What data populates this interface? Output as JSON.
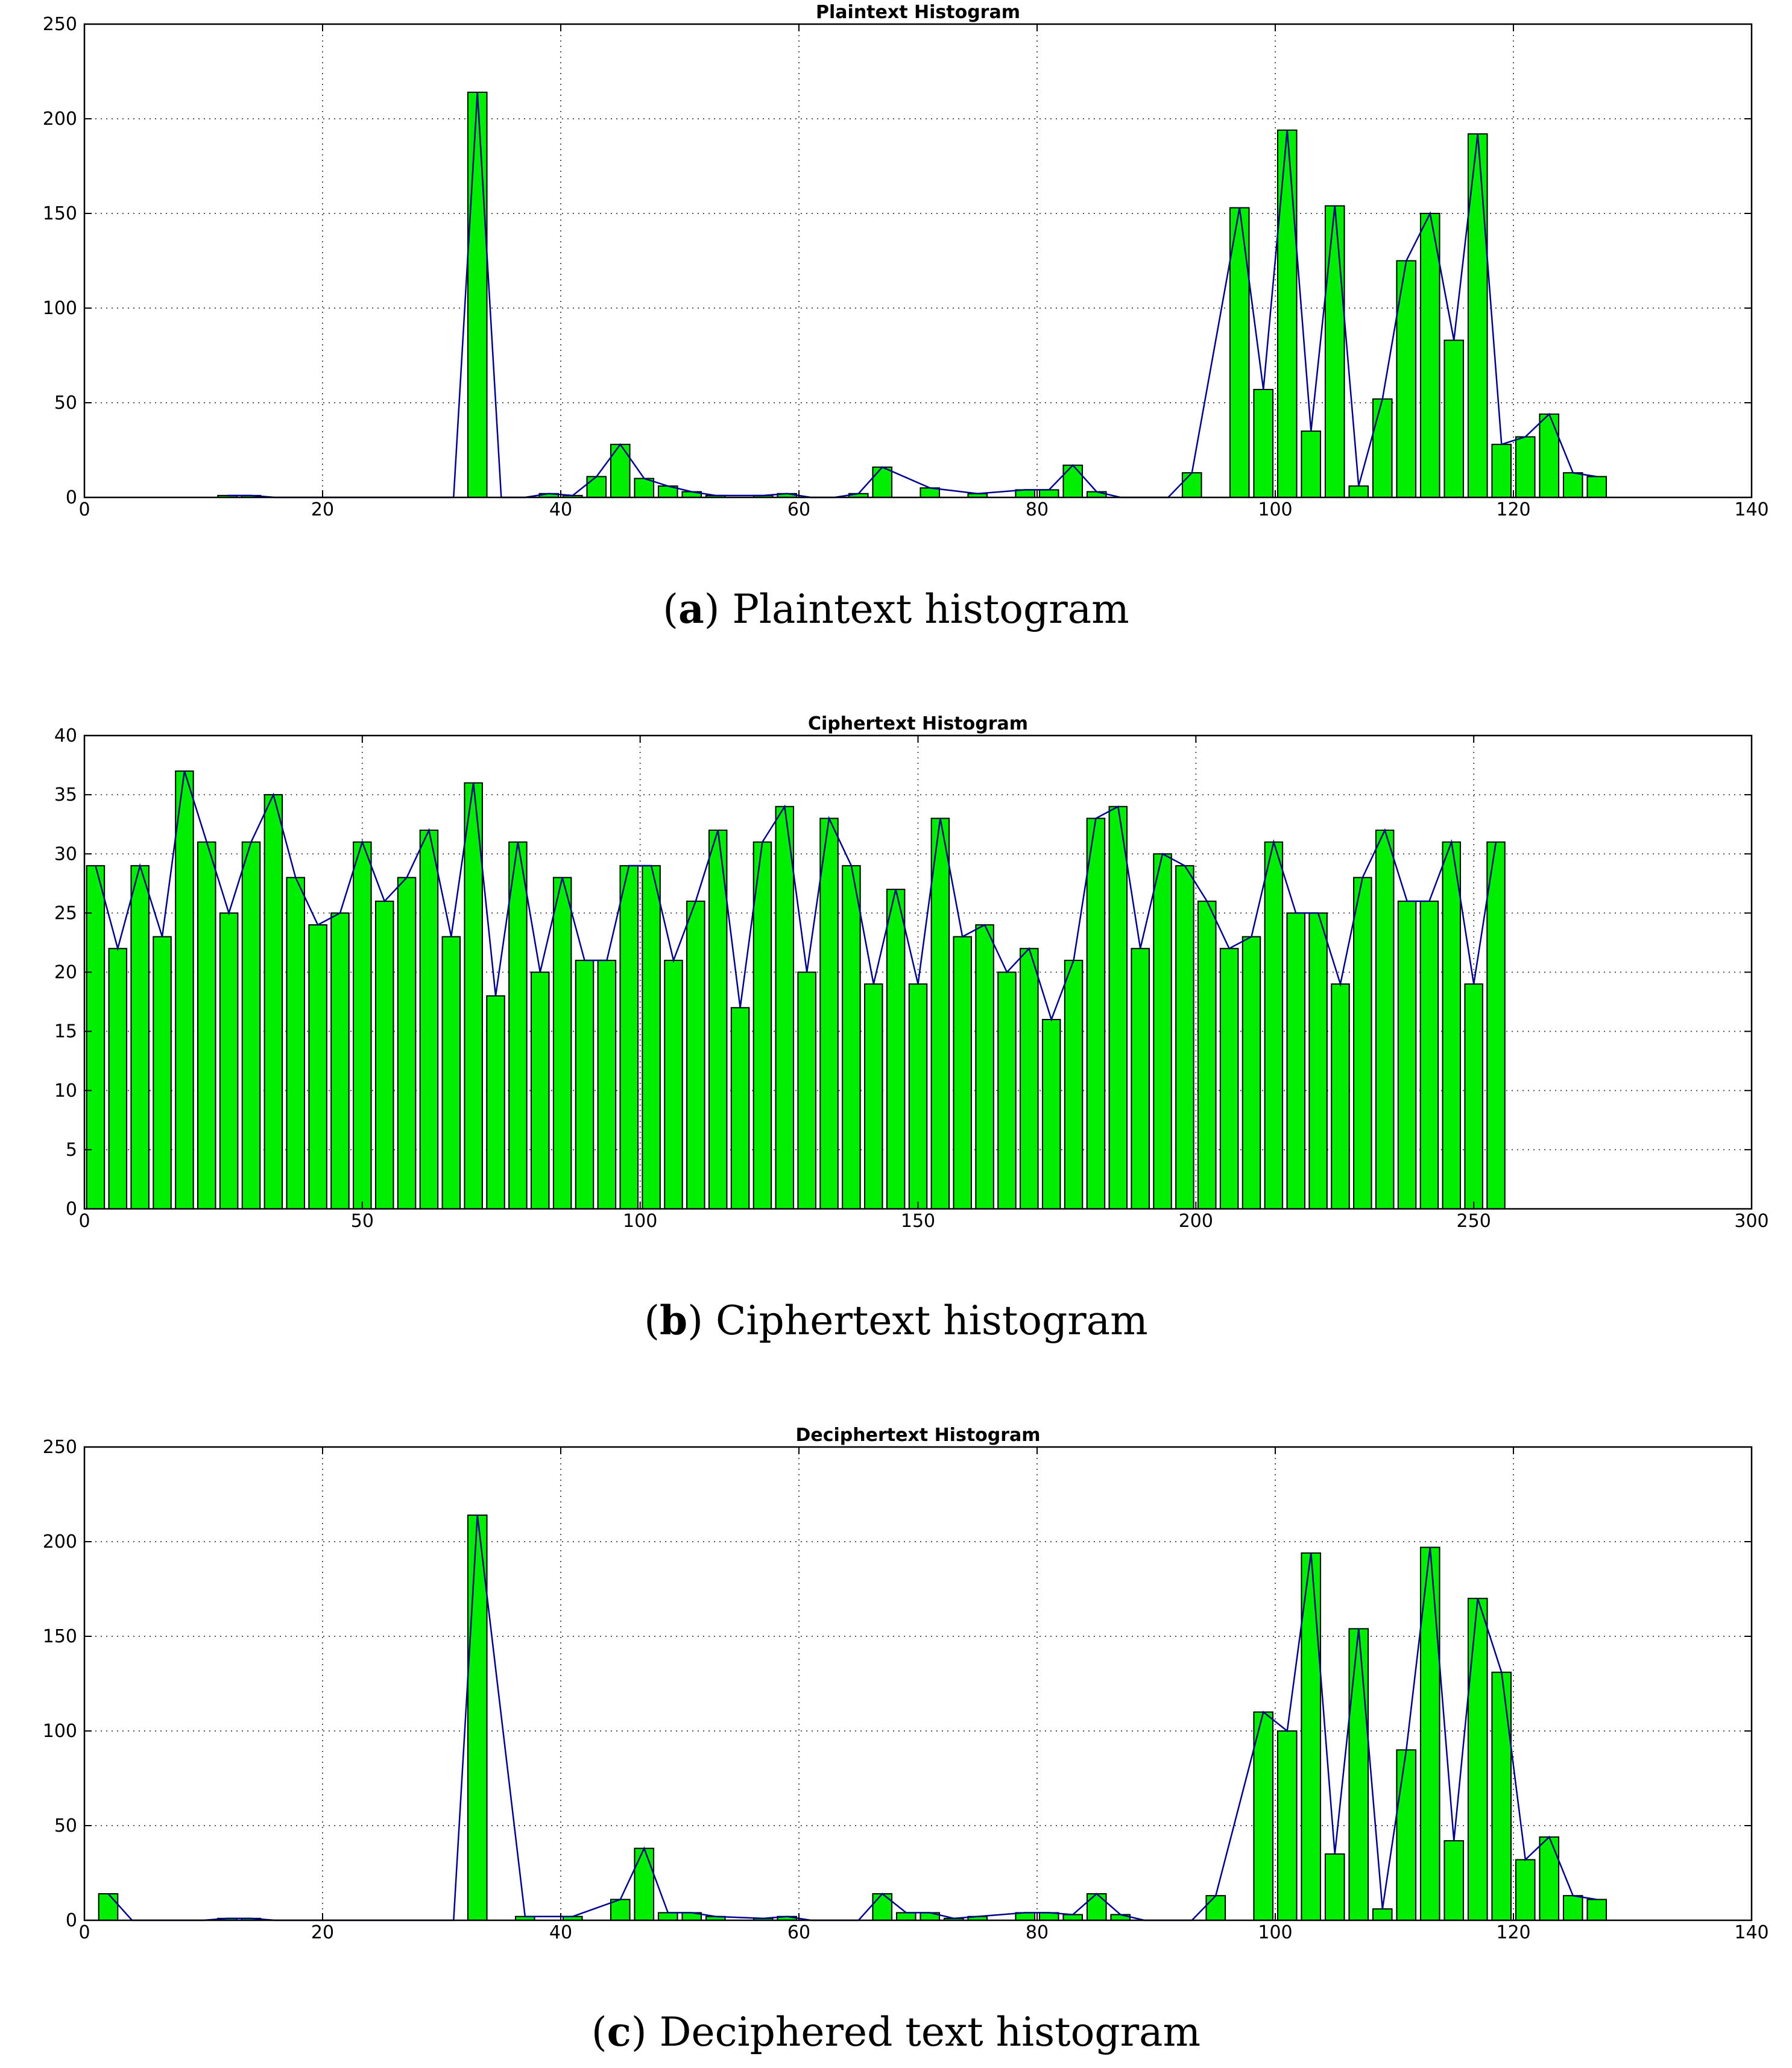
{
  "chart_data": [
    {
      "type": "bar",
      "title": "Plaintext Histogram",
      "caption_letter": "a",
      "caption_text": "Plaintext histogram",
      "xlim": [
        0,
        140
      ],
      "ylim": [
        0,
        250
      ],
      "xticks": [
        0,
        20,
        40,
        60,
        80,
        100,
        120,
        140
      ],
      "yticks": [
        0,
        50,
        100,
        150,
        200,
        250
      ],
      "bar_width": 1.6,
      "grid": true,
      "overlay_line": true,
      "x": [
        12,
        14,
        33,
        39,
        41,
        43,
        45,
        47,
        49,
        51,
        53,
        57,
        59,
        65,
        67,
        71,
        75,
        79,
        81,
        83,
        85,
        93,
        97,
        99,
        101,
        103,
        105,
        107,
        109,
        111,
        113,
        115,
        117,
        119,
        121,
        123,
        125,
        127
      ],
      "values": [
        1,
        1,
        214,
        2,
        1,
        11,
        28,
        10,
        6,
        3,
        1,
        1,
        2,
        2,
        16,
        5,
        2,
        4,
        4,
        17,
        3,
        13,
        153,
        57,
        194,
        35,
        154,
        6,
        52,
        125,
        150,
        83,
        192,
        28,
        32,
        44,
        13,
        11
      ]
    },
    {
      "type": "bar",
      "title": "Ciphertext Histogram",
      "caption_letter": "b",
      "caption_text": "Ciphertext histogram",
      "xlim": [
        0,
        300
      ],
      "ylim": [
        0,
        40
      ],
      "xticks": [
        0,
        50,
        100,
        150,
        200,
        250,
        300
      ],
      "yticks": [
        0,
        5,
        10,
        15,
        20,
        25,
        30,
        35,
        40
      ],
      "bar_width": 3.2,
      "grid": true,
      "overlay_line": true,
      "x": [
        2,
        6,
        10,
        14,
        18,
        22,
        26,
        30,
        34,
        38,
        42,
        46,
        50,
        54,
        58,
        62,
        66,
        70,
        74,
        78,
        82,
        86,
        90,
        94,
        98,
        102,
        106,
        110,
        114,
        118,
        122,
        126,
        130,
        134,
        138,
        142,
        146,
        150,
        154,
        158,
        162,
        166,
        170,
        174,
        178,
        182,
        186,
        190,
        194,
        198,
        202,
        206,
        210,
        214,
        218,
        222,
        226,
        230,
        234,
        238,
        242,
        246,
        250,
        254
      ],
      "values": [
        29,
        22,
        29,
        23,
        37,
        31,
        25,
        31,
        35,
        28,
        24,
        25,
        31,
        26,
        28,
        32,
        23,
        36,
        18,
        31,
        20,
        28,
        21,
        21,
        29,
        29,
        21,
        26,
        32,
        17,
        31,
        34,
        20,
        33,
        29,
        19,
        27,
        19,
        33,
        23,
        24,
        20,
        22,
        16,
        21,
        33,
        34,
        22,
        30,
        29,
        26,
        22,
        23,
        31,
        25,
        25,
        19,
        28,
        32,
        26,
        26,
        31,
        19,
        31
      ]
    },
    {
      "type": "bar",
      "title": "Deciphertext Histogram",
      "caption_letter": "c",
      "caption_text": "Deciphered text histogram",
      "xlim": [
        0,
        140
      ],
      "ylim": [
        0,
        250
      ],
      "xticks": [
        0,
        20,
        40,
        60,
        80,
        100,
        120,
        140
      ],
      "yticks": [
        0,
        50,
        100,
        150,
        200,
        250
      ],
      "bar_width": 1.6,
      "grid": true,
      "overlay_line": true,
      "x": [
        2,
        12,
        14,
        33,
        37,
        41,
        45,
        47,
        49,
        51,
        53,
        57,
        59,
        67,
        69,
        71,
        73,
        75,
        79,
        81,
        83,
        85,
        87,
        95,
        99,
        101,
        103,
        105,
        107,
        109,
        111,
        113,
        115,
        117,
        119,
        121,
        123,
        125,
        127
      ],
      "values": [
        14,
        1,
        1,
        214,
        2,
        2,
        11,
        38,
        4,
        4,
        2,
        1,
        2,
        14,
        4,
        4,
        1,
        2,
        4,
        4,
        3,
        14,
        3,
        13,
        110,
        100,
        194,
        35,
        154,
        6,
        90,
        197,
        42,
        170,
        131,
        32,
        44,
        13,
        11
      ]
    }
  ],
  "colors": {
    "bar_fill": "#00ee00",
    "bar_edge": "#000000",
    "line": "#00008b",
    "grid": "#555555"
  }
}
